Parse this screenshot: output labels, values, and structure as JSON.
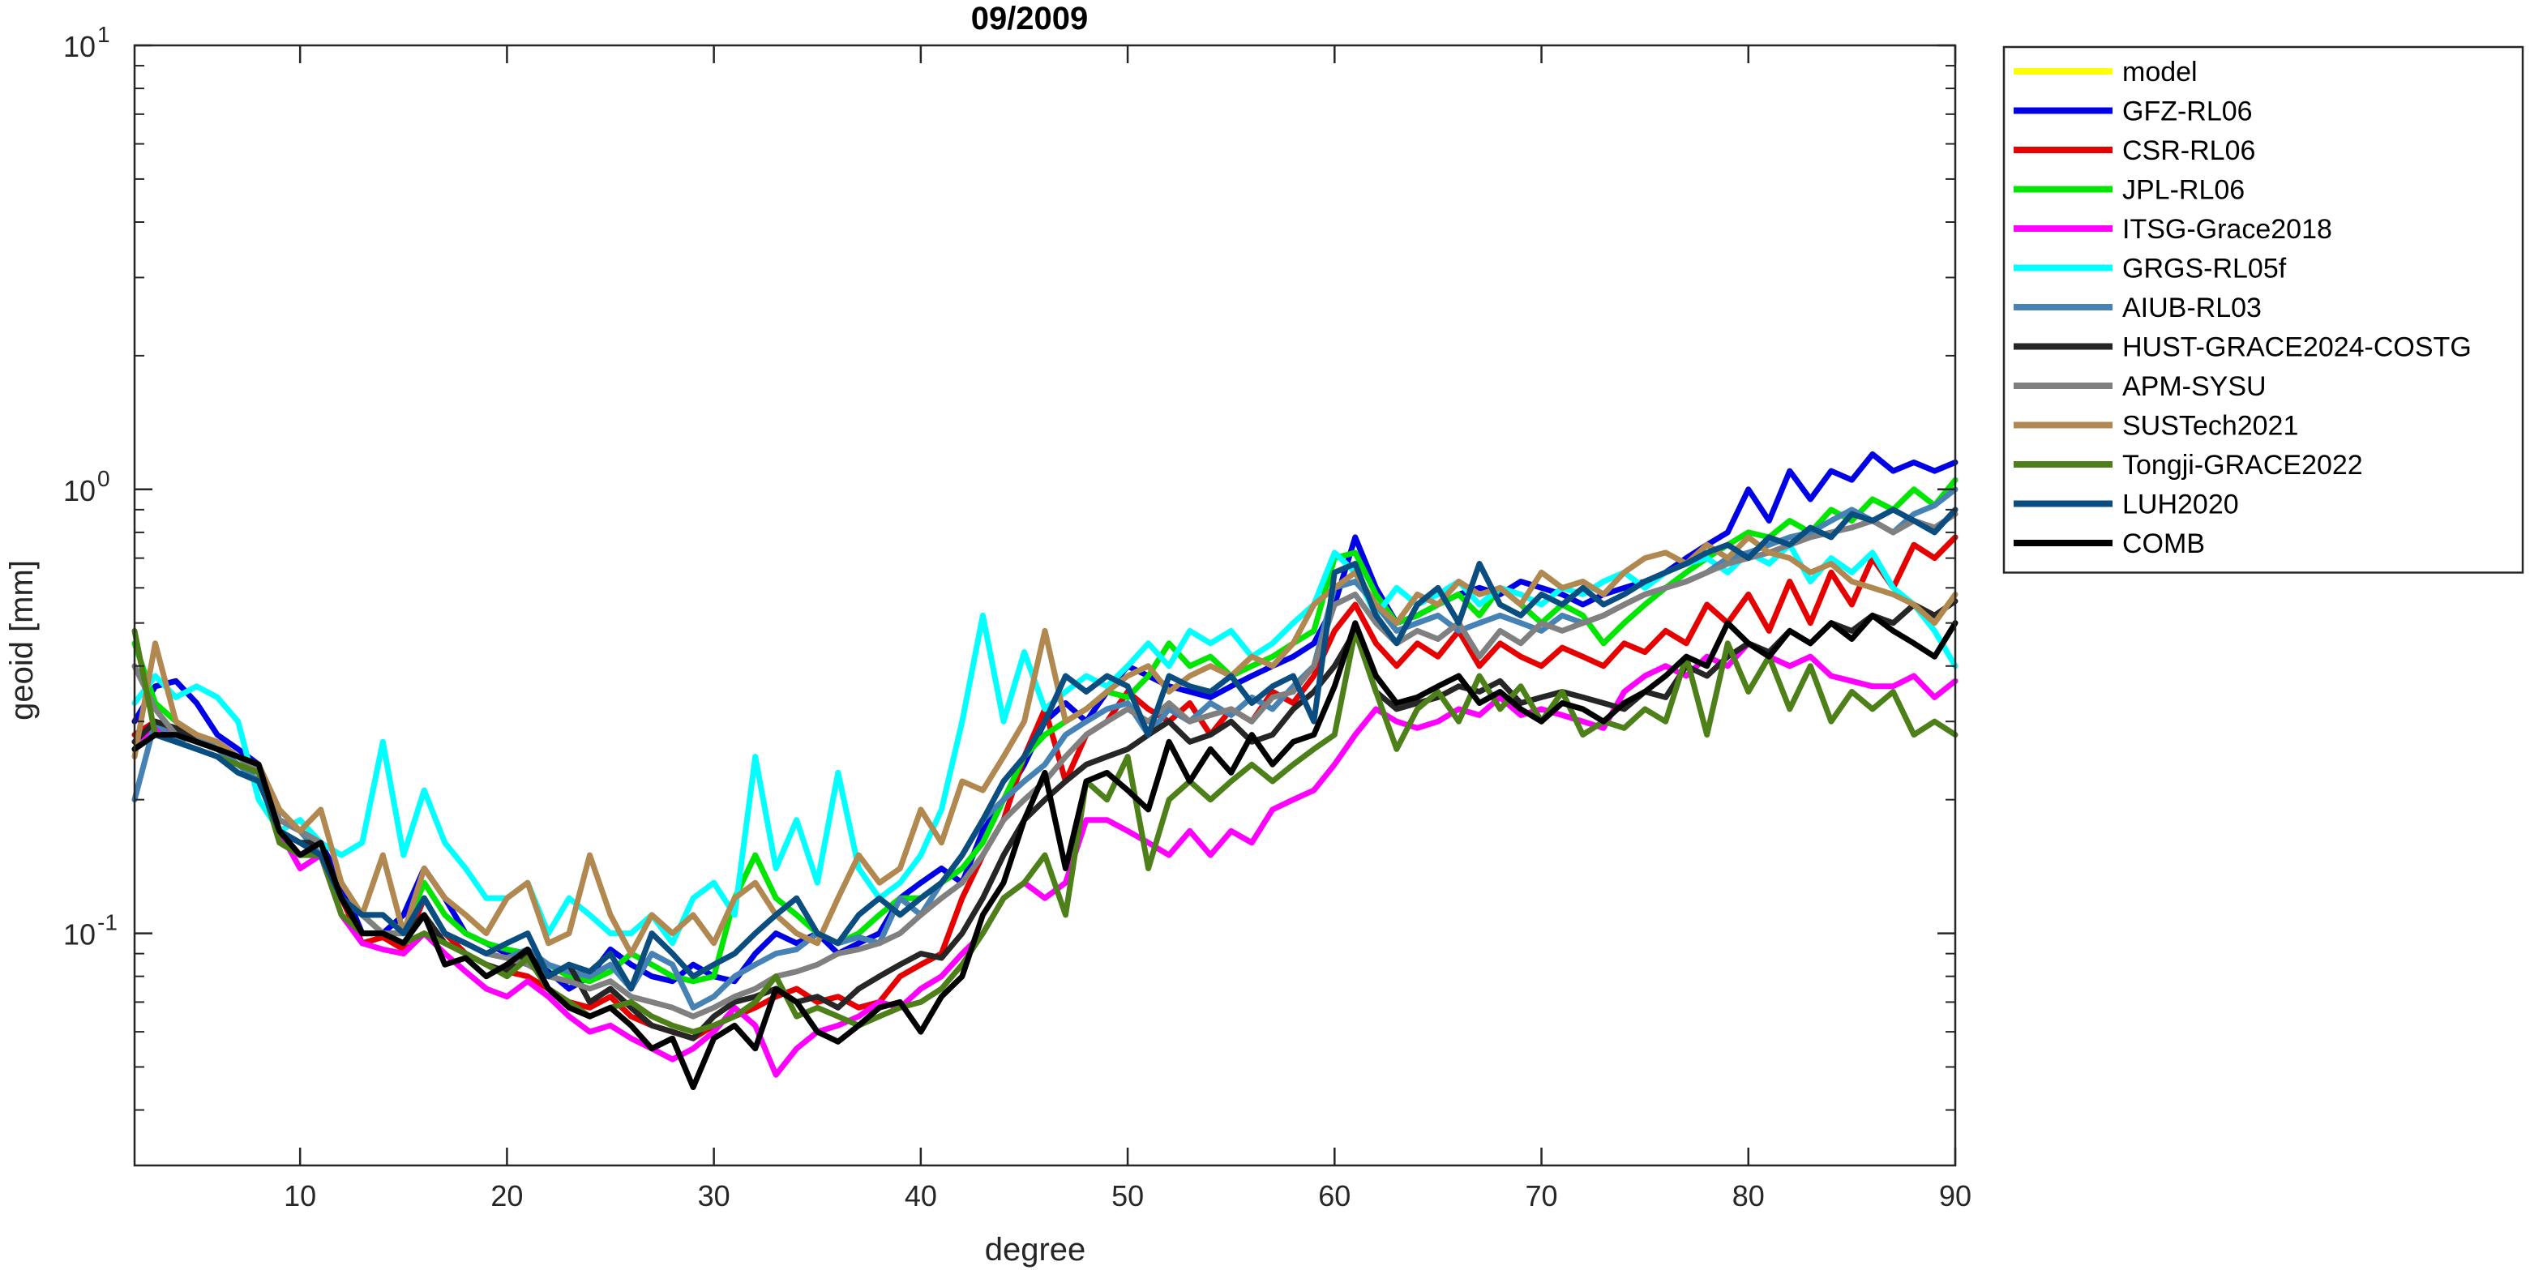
{
  "chart_data": {
    "type": "line",
    "title": "09/2009",
    "xlabel": "degree",
    "ylabel": "geoid [mm]",
    "yscale": "log",
    "xlim": [
      2,
      90
    ],
    "ylim": [
      0.03,
      10
    ],
    "xticks": [
      10,
      20,
      30,
      40,
      50,
      60,
      70,
      80,
      90
    ],
    "yticks": [
      {
        "value": 0.1,
        "base": "10",
        "exp": "-1"
      },
      {
        "value": 1,
        "base": "10",
        "exp": "0"
      },
      {
        "value": 10,
        "base": "10",
        "exp": "1"
      }
    ],
    "grid": false,
    "legend_position": "outside-right",
    "x_start": 2,
    "series": [
      {
        "name": "model",
        "color": "#FFFF00",
        "values": []
      },
      {
        "name": "GFZ-RL06",
        "color": "#0000E6",
        "values": [
          0.3,
          0.36,
          0.37,
          0.33,
          0.28,
          0.26,
          0.24,
          0.18,
          0.17,
          0.16,
          0.13,
          0.1,
          0.1,
          0.11,
          0.14,
          0.12,
          0.1,
          0.095,
          0.09,
          0.088,
          0.082,
          0.075,
          0.08,
          0.092,
          0.085,
          0.08,
          0.078,
          0.085,
          0.08,
          0.078,
          0.09,
          0.1,
          0.095,
          0.1,
          0.09,
          0.095,
          0.1,
          0.12,
          0.13,
          0.14,
          0.13,
          0.17,
          0.2,
          0.24,
          0.3,
          0.33,
          0.3,
          0.35,
          0.4,
          0.38,
          0.36,
          0.35,
          0.34,
          0.36,
          0.38,
          0.4,
          0.42,
          0.45,
          0.55,
          0.78,
          0.6,
          0.5,
          0.52,
          0.55,
          0.58,
          0.6,
          0.58,
          0.62,
          0.6,
          0.58,
          0.55,
          0.58,
          0.6,
          0.62,
          0.65,
          0.7,
          0.75,
          0.8,
          1.0,
          0.85,
          1.1,
          0.95,
          1.1,
          1.05,
          1.2,
          1.1,
          1.15,
          1.1,
          1.15
        ]
      },
      {
        "name": "CSR-RL06",
        "color": "#E60000",
        "values": [
          0.28,
          0.3,
          0.28,
          0.27,
          0.26,
          0.25,
          0.24,
          0.17,
          0.16,
          0.15,
          0.12,
          0.095,
          0.098,
          0.092,
          0.12,
          0.1,
          0.09,
          0.085,
          0.082,
          0.08,
          0.075,
          0.07,
          0.068,
          0.072,
          0.065,
          0.062,
          0.06,
          0.058,
          0.062,
          0.065,
          0.068,
          0.072,
          0.075,
          0.07,
          0.072,
          0.068,
          0.07,
          0.08,
          0.085,
          0.09,
          0.12,
          0.15,
          0.18,
          0.25,
          0.32,
          0.22,
          0.28,
          0.3,
          0.35,
          0.32,
          0.3,
          0.33,
          0.28,
          0.32,
          0.3,
          0.35,
          0.33,
          0.38,
          0.48,
          0.55,
          0.45,
          0.4,
          0.45,
          0.42,
          0.48,
          0.4,
          0.45,
          0.42,
          0.4,
          0.44,
          0.42,
          0.4,
          0.45,
          0.43,
          0.48,
          0.45,
          0.55,
          0.5,
          0.58,
          0.48,
          0.62,
          0.5,
          0.65,
          0.55,
          0.7,
          0.6,
          0.75,
          0.7,
          0.78
        ]
      },
      {
        "name": "JPL-RL06",
        "color": "#00E600",
        "values": [
          0.45,
          0.33,
          0.3,
          0.28,
          0.26,
          0.25,
          0.23,
          0.17,
          0.16,
          0.15,
          0.12,
          0.11,
          0.1,
          0.1,
          0.13,
          0.11,
          0.1,
          0.095,
          0.092,
          0.09,
          0.085,
          0.08,
          0.078,
          0.082,
          0.09,
          0.085,
          0.08,
          0.078,
          0.08,
          0.12,
          0.15,
          0.12,
          0.11,
          0.1,
          0.095,
          0.1,
          0.11,
          0.12,
          0.12,
          0.13,
          0.14,
          0.16,
          0.2,
          0.25,
          0.28,
          0.3,
          0.32,
          0.35,
          0.34,
          0.38,
          0.45,
          0.4,
          0.42,
          0.38,
          0.4,
          0.42,
          0.45,
          0.48,
          0.7,
          0.72,
          0.58,
          0.5,
          0.52,
          0.55,
          0.58,
          0.52,
          0.6,
          0.55,
          0.5,
          0.55,
          0.52,
          0.45,
          0.5,
          0.55,
          0.6,
          0.65,
          0.7,
          0.75,
          0.8,
          0.78,
          0.85,
          0.8,
          0.9,
          0.85,
          0.95,
          0.9,
          1.0,
          0.92,
          1.05
        ]
      },
      {
        "name": "ITSG-Grace2018",
        "color": "#FF00FF",
        "values": [
          0.27,
          0.29,
          0.28,
          0.27,
          0.26,
          0.25,
          0.24,
          0.17,
          0.14,
          0.15,
          0.11,
          0.095,
          0.092,
          0.09,
          0.1,
          0.09,
          0.082,
          0.075,
          0.072,
          0.078,
          0.072,
          0.065,
          0.06,
          0.062,
          0.058,
          0.055,
          0.052,
          0.055,
          0.06,
          0.068,
          0.062,
          0.048,
          0.055,
          0.06,
          0.062,
          0.065,
          0.07,
          0.068,
          0.075,
          0.08,
          0.09,
          0.1,
          0.12,
          0.13,
          0.12,
          0.13,
          0.18,
          0.18,
          0.17,
          0.16,
          0.15,
          0.17,
          0.15,
          0.17,
          0.16,
          0.19,
          0.2,
          0.21,
          0.24,
          0.28,
          0.32,
          0.3,
          0.29,
          0.3,
          0.32,
          0.31,
          0.34,
          0.31,
          0.32,
          0.31,
          0.3,
          0.29,
          0.35,
          0.38,
          0.4,
          0.38,
          0.42,
          0.4,
          0.45,
          0.42,
          0.4,
          0.42,
          0.38,
          0.37,
          0.36,
          0.36,
          0.38,
          0.34,
          0.37
        ]
      },
      {
        "name": "GRGS-RL05f",
        "color": "#00FFFF",
        "values": [
          0.33,
          0.38,
          0.34,
          0.36,
          0.34,
          0.3,
          0.2,
          0.17,
          0.18,
          0.16,
          0.15,
          0.16,
          0.27,
          0.15,
          0.21,
          0.16,
          0.14,
          0.12,
          0.12,
          0.13,
          0.1,
          0.12,
          0.11,
          0.1,
          0.1,
          0.11,
          0.095,
          0.12,
          0.13,
          0.11,
          0.25,
          0.14,
          0.18,
          0.13,
          0.23,
          0.14,
          0.12,
          0.13,
          0.15,
          0.19,
          0.3,
          0.52,
          0.3,
          0.43,
          0.32,
          0.35,
          0.38,
          0.36,
          0.4,
          0.45,
          0.4,
          0.48,
          0.45,
          0.48,
          0.42,
          0.45,
          0.5,
          0.55,
          0.72,
          0.65,
          0.52,
          0.6,
          0.55,
          0.58,
          0.62,
          0.55,
          0.6,
          0.58,
          0.55,
          0.6,
          0.58,
          0.62,
          0.65,
          0.6,
          0.65,
          0.68,
          0.7,
          0.65,
          0.72,
          0.68,
          0.75,
          0.62,
          0.7,
          0.65,
          0.72,
          0.6,
          0.55,
          0.48,
          0.4
        ]
      },
      {
        "name": "AIUB-RL03",
        "color": "#4682B4",
        "values": [
          0.2,
          0.3,
          0.27,
          0.28,
          0.26,
          0.24,
          0.22,
          0.18,
          0.17,
          0.15,
          0.12,
          0.11,
          0.11,
          0.1,
          0.12,
          0.1,
          0.095,
          0.09,
          0.088,
          0.092,
          0.085,
          0.082,
          0.08,
          0.085,
          0.075,
          0.09,
          0.085,
          0.068,
          0.072,
          0.08,
          0.085,
          0.09,
          0.092,
          0.1,
          0.095,
          0.098,
          0.095,
          0.12,
          0.11,
          0.13,
          0.15,
          0.18,
          0.2,
          0.22,
          0.24,
          0.28,
          0.3,
          0.32,
          0.33,
          0.28,
          0.32,
          0.3,
          0.33,
          0.31,
          0.34,
          0.32,
          0.36,
          0.4,
          0.6,
          0.62,
          0.55,
          0.48,
          0.5,
          0.52,
          0.48,
          0.5,
          0.52,
          0.5,
          0.48,
          0.52,
          0.5,
          0.52,
          0.55,
          0.58,
          0.6,
          0.62,
          0.65,
          0.7,
          0.72,
          0.75,
          0.78,
          0.8,
          0.85,
          0.9,
          0.85,
          0.8,
          0.88,
          0.92,
          1.0
        ]
      },
      {
        "name": "HUST-GRACE2024-COSTG",
        "color": "#262626",
        "values": [
          0.27,
          0.3,
          0.29,
          0.27,
          0.26,
          0.25,
          0.24,
          0.17,
          0.16,
          0.16,
          0.12,
          0.1,
          0.1,
          0.1,
          0.11,
          0.095,
          0.09,
          0.085,
          0.082,
          0.09,
          0.08,
          0.085,
          0.07,
          0.075,
          0.068,
          0.062,
          0.06,
          0.058,
          0.065,
          0.07,
          0.072,
          0.075,
          0.07,
          0.072,
          0.068,
          0.075,
          0.08,
          0.085,
          0.09,
          0.088,
          0.1,
          0.12,
          0.15,
          0.18,
          0.2,
          0.22,
          0.24,
          0.25,
          0.26,
          0.28,
          0.3,
          0.27,
          0.28,
          0.3,
          0.27,
          0.28,
          0.32,
          0.35,
          0.4,
          0.48,
          0.35,
          0.32,
          0.33,
          0.34,
          0.36,
          0.35,
          0.37,
          0.33,
          0.34,
          0.35,
          0.34,
          0.33,
          0.32,
          0.35,
          0.34,
          0.4,
          0.38,
          0.42,
          0.45,
          0.43,
          0.48,
          0.45,
          0.5,
          0.48,
          0.52,
          0.5,
          0.55,
          0.52,
          0.56
        ]
      },
      {
        "name": "APM-SYSU",
        "color": "#808080",
        "values": [
          0.4,
          0.32,
          0.28,
          0.27,
          0.26,
          0.25,
          0.23,
          0.18,
          0.17,
          0.16,
          0.12,
          0.11,
          0.1,
          0.1,
          0.12,
          0.1,
          0.095,
          0.09,
          0.088,
          0.085,
          0.08,
          0.078,
          0.075,
          0.078,
          0.072,
          0.07,
          0.068,
          0.065,
          0.068,
          0.072,
          0.075,
          0.08,
          0.082,
          0.085,
          0.09,
          0.092,
          0.095,
          0.1,
          0.11,
          0.12,
          0.13,
          0.15,
          0.18,
          0.2,
          0.22,
          0.25,
          0.28,
          0.3,
          0.32,
          0.3,
          0.33,
          0.3,
          0.31,
          0.32,
          0.3,
          0.34,
          0.35,
          0.4,
          0.55,
          0.58,
          0.5,
          0.45,
          0.48,
          0.46,
          0.5,
          0.42,
          0.48,
          0.45,
          0.5,
          0.48,
          0.5,
          0.52,
          0.55,
          0.58,
          0.6,
          0.62,
          0.65,
          0.68,
          0.7,
          0.72,
          0.75,
          0.78,
          0.8,
          0.82,
          0.85,
          0.8,
          0.85,
          0.82,
          0.88
        ]
      },
      {
        "name": "SUSTech2021",
        "color": "#B08850",
        "values": [
          0.25,
          0.45,
          0.3,
          0.28,
          0.27,
          0.25,
          0.24,
          0.19,
          0.17,
          0.19,
          0.13,
          0.11,
          0.15,
          0.1,
          0.14,
          0.12,
          0.11,
          0.1,
          0.12,
          0.13,
          0.095,
          0.1,
          0.15,
          0.11,
          0.09,
          0.11,
          0.1,
          0.11,
          0.095,
          0.12,
          0.13,
          0.11,
          0.1,
          0.095,
          0.12,
          0.15,
          0.13,
          0.14,
          0.19,
          0.16,
          0.22,
          0.21,
          0.25,
          0.3,
          0.48,
          0.3,
          0.32,
          0.35,
          0.38,
          0.4,
          0.35,
          0.38,
          0.4,
          0.38,
          0.42,
          0.4,
          0.45,
          0.55,
          0.6,
          0.65,
          0.55,
          0.5,
          0.58,
          0.55,
          0.62,
          0.58,
          0.6,
          0.55,
          0.65,
          0.6,
          0.62,
          0.58,
          0.65,
          0.7,
          0.72,
          0.68,
          0.75,
          0.7,
          0.78,
          0.72,
          0.7,
          0.65,
          0.68,
          0.62,
          0.6,
          0.58,
          0.55,
          0.5,
          0.58
        ]
      },
      {
        "name": "Tongji-GRACE2022",
        "color": "#4D8019",
        "values": [
          0.48,
          0.28,
          0.27,
          0.26,
          0.25,
          0.24,
          0.23,
          0.16,
          0.15,
          0.15,
          0.11,
          0.1,
          0.1,
          0.095,
          0.1,
          0.095,
          0.09,
          0.085,
          0.08,
          0.088,
          0.075,
          0.07,
          0.065,
          0.068,
          0.07,
          0.065,
          0.062,
          0.06,
          0.062,
          0.065,
          0.07,
          0.08,
          0.065,
          0.068,
          0.065,
          0.062,
          0.065,
          0.068,
          0.07,
          0.075,
          0.085,
          0.1,
          0.12,
          0.13,
          0.15,
          0.11,
          0.22,
          0.2,
          0.25,
          0.14,
          0.2,
          0.22,
          0.2,
          0.22,
          0.24,
          0.22,
          0.24,
          0.26,
          0.28,
          0.48,
          0.35,
          0.26,
          0.32,
          0.35,
          0.3,
          0.38,
          0.32,
          0.36,
          0.3,
          0.35,
          0.28,
          0.3,
          0.29,
          0.32,
          0.3,
          0.42,
          0.28,
          0.45,
          0.35,
          0.42,
          0.32,
          0.4,
          0.3,
          0.35,
          0.32,
          0.35,
          0.28,
          0.3,
          0.28
        ]
      },
      {
        "name": "LUH2020",
        "color": "#0A4D80",
        "values": [
          0.26,
          0.28,
          0.27,
          0.26,
          0.25,
          0.23,
          0.22,
          0.17,
          0.16,
          0.15,
          0.12,
          0.11,
          0.11,
          0.1,
          0.12,
          0.1,
          0.095,
          0.09,
          0.095,
          0.1,
          0.08,
          0.085,
          0.082,
          0.09,
          0.075,
          0.1,
          0.09,
          0.08,
          0.085,
          0.09,
          0.1,
          0.11,
          0.12,
          0.1,
          0.095,
          0.11,
          0.12,
          0.11,
          0.12,
          0.13,
          0.15,
          0.18,
          0.22,
          0.25,
          0.3,
          0.38,
          0.35,
          0.38,
          0.36,
          0.28,
          0.38,
          0.36,
          0.35,
          0.38,
          0.33,
          0.36,
          0.38,
          0.3,
          0.65,
          0.68,
          0.52,
          0.45,
          0.55,
          0.6,
          0.5,
          0.68,
          0.55,
          0.52,
          0.58,
          0.55,
          0.6,
          0.55,
          0.58,
          0.62,
          0.65,
          0.68,
          0.72,
          0.75,
          0.7,
          0.78,
          0.75,
          0.82,
          0.78,
          0.88,
          0.85,
          0.9,
          0.85,
          0.8,
          0.9
        ]
      },
      {
        "name": "COMB",
        "color": "#000000",
        "values": [
          0.26,
          0.28,
          0.28,
          0.27,
          0.26,
          0.25,
          0.24,
          0.17,
          0.15,
          0.16,
          0.12,
          0.1,
          0.1,
          0.095,
          0.11,
          0.085,
          0.088,
          0.08,
          0.085,
          0.092,
          0.075,
          0.068,
          0.065,
          0.068,
          0.062,
          0.055,
          0.058,
          0.045,
          0.058,
          0.062,
          0.055,
          0.075,
          0.07,
          0.06,
          0.057,
          0.062,
          0.068,
          0.07,
          0.06,
          0.072,
          0.08,
          0.11,
          0.13,
          0.18,
          0.23,
          0.14,
          0.22,
          0.23,
          0.21,
          0.19,
          0.27,
          0.22,
          0.26,
          0.23,
          0.28,
          0.24,
          0.27,
          0.28,
          0.36,
          0.5,
          0.38,
          0.33,
          0.34,
          0.36,
          0.38,
          0.33,
          0.35,
          0.32,
          0.3,
          0.33,
          0.32,
          0.3,
          0.33,
          0.35,
          0.38,
          0.42,
          0.4,
          0.5,
          0.45,
          0.42,
          0.48,
          0.45,
          0.5,
          0.46,
          0.52,
          0.48,
          0.45,
          0.42,
          0.5
        ]
      }
    ]
  }
}
